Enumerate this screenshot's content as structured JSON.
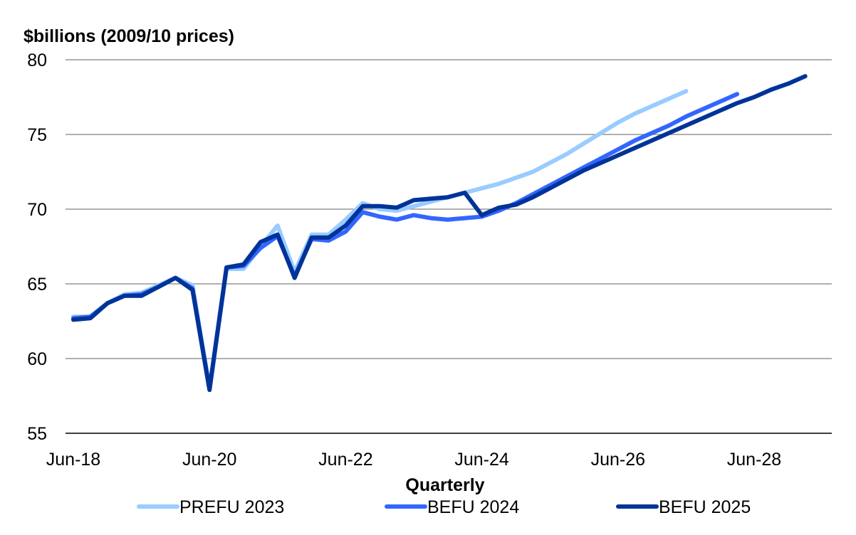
{
  "chart_data": {
    "type": "line",
    "title": "",
    "ylabel": "$billions (2009/10 prices)",
    "xlabel": "Quarterly",
    "ylim": [
      55,
      80
    ],
    "yticks": [
      55,
      60,
      65,
      70,
      75,
      80
    ],
    "grid": true,
    "legend_position": "bottom",
    "x_tick_labels": [
      "Jun-18",
      "Jun-20",
      "Jun-22",
      "Jun-24",
      "Jun-26",
      "Jun-28"
    ],
    "x": [
      "Jun-18",
      "Sep-18",
      "Dec-18",
      "Mar-19",
      "Jun-19",
      "Sep-19",
      "Dec-19",
      "Mar-20",
      "Jun-20",
      "Sep-20",
      "Dec-20",
      "Mar-21",
      "Jun-21",
      "Sep-21",
      "Dec-21",
      "Mar-22",
      "Jun-22",
      "Sep-22",
      "Dec-22",
      "Mar-23",
      "Jun-23",
      "Sep-23",
      "Dec-23",
      "Mar-24",
      "Jun-24",
      "Sep-24",
      "Dec-24",
      "Mar-25",
      "Jun-25",
      "Sep-25",
      "Dec-25",
      "Mar-26",
      "Jun-26",
      "Sep-26",
      "Dec-26",
      "Mar-27",
      "Jun-27",
      "Sep-27",
      "Dec-27",
      "Mar-28",
      "Jun-28",
      "Sep-28",
      "Dec-28",
      "Mar-29"
    ],
    "series": [
      {
        "name": "PREFU 2023",
        "color": "#99CCFF",
        "values": [
          62.8,
          62.8,
          63.7,
          64.3,
          64.4,
          64.9,
          65.4,
          64.9,
          58.0,
          66.0,
          66.0,
          67.5,
          68.9,
          65.8,
          68.3,
          68.3,
          69.3,
          70.4,
          70.0,
          69.9,
          70.2,
          70.5,
          70.8,
          71.1,
          71.4,
          71.7,
          72.1,
          72.5,
          73.1,
          73.7,
          74.4,
          75.1,
          75.8,
          76.4,
          76.9,
          77.4,
          77.9,
          null,
          null,
          null,
          null,
          null,
          null,
          null
        ]
      },
      {
        "name": "BEFU 2024",
        "color": "#3366FF",
        "values": [
          62.7,
          62.8,
          63.7,
          64.2,
          64.3,
          64.8,
          65.4,
          64.7,
          58.0,
          66.1,
          66.2,
          67.4,
          68.2,
          65.5,
          68.0,
          67.9,
          68.5,
          69.8,
          69.5,
          69.3,
          69.6,
          69.4,
          69.3,
          69.4,
          69.5,
          69.9,
          70.4,
          71.0,
          71.6,
          72.2,
          72.8,
          73.4,
          74.0,
          74.6,
          75.1,
          75.6,
          76.2,
          76.7,
          77.2,
          77.7,
          null,
          null,
          null,
          null
        ]
      },
      {
        "name": "BEFU 2025",
        "color": "#003399",
        "values": [
          62.6,
          62.7,
          63.7,
          64.2,
          64.2,
          64.8,
          65.4,
          64.6,
          57.9,
          66.1,
          66.3,
          67.8,
          68.3,
          65.4,
          68.1,
          68.1,
          68.9,
          70.2,
          70.2,
          70.1,
          70.6,
          70.7,
          70.8,
          71.1,
          69.6,
          70.1,
          70.3,
          70.8,
          71.4,
          72.0,
          72.6,
          73.1,
          73.6,
          74.1,
          74.6,
          75.1,
          75.6,
          76.1,
          76.6,
          77.1,
          77.5,
          78.0,
          78.4,
          78.9
        ]
      }
    ]
  }
}
